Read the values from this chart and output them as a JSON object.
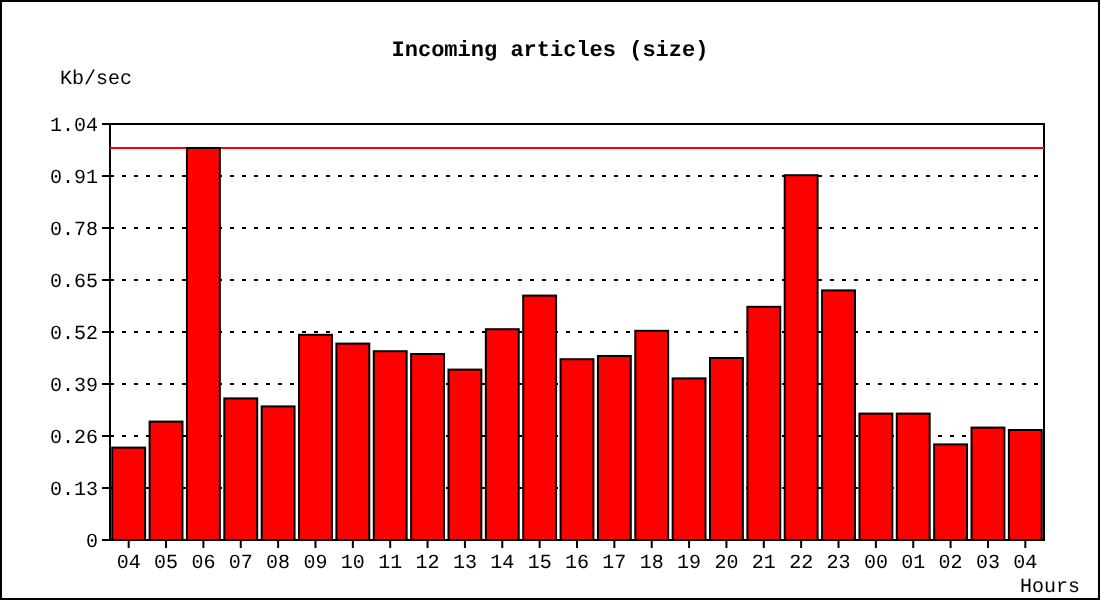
{
  "chart_data": {
    "type": "bar",
    "title": "Incoming articles (size)",
    "ylabel": "Kb/sec",
    "xlabel": "Hours",
    "categories": [
      "04",
      "05",
      "06",
      "07",
      "08",
      "09",
      "10",
      "11",
      "12",
      "13",
      "14",
      "15",
      "16",
      "17",
      "18",
      "19",
      "20",
      "21",
      "22",
      "23",
      "00",
      "01",
      "02",
      "03",
      "04"
    ],
    "values": [
      0.231,
      0.296,
      0.98,
      0.354,
      0.334,
      0.513,
      0.491,
      0.472,
      0.465,
      0.426,
      0.527,
      0.611,
      0.452,
      0.46,
      0.523,
      0.404,
      0.455,
      0.583,
      0.912,
      0.624,
      0.316,
      0.316,
      0.239,
      0.281,
      0.275
    ],
    "color": "#ff0000",
    "ylim": [
      0,
      1.04
    ],
    "yticks": [
      0,
      0.13,
      0.26,
      0.39,
      0.52,
      0.65,
      0.78,
      0.91,
      1.04
    ],
    "grid": "y",
    "ref_lines": [
      {
        "axis": "y",
        "value": 0.98,
        "color": "#ff0000"
      }
    ]
  }
}
